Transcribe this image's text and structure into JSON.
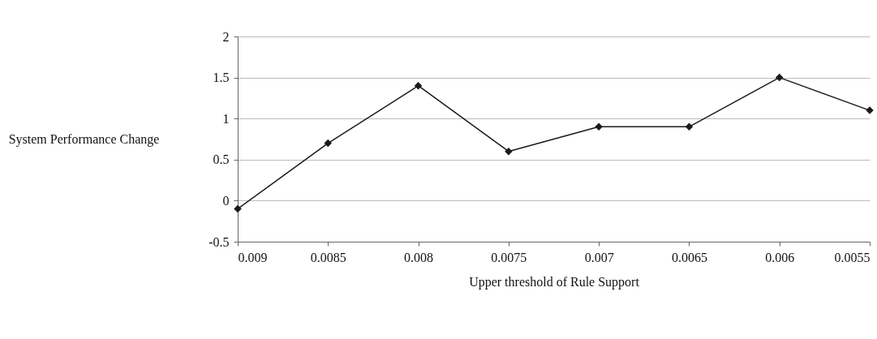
{
  "chart_data": {
    "type": "line",
    "xlabel": "Upper threshold of Rule Support",
    "ylabel": "System Performance Change",
    "x": [
      0.009,
      0.0085,
      0.008,
      0.0075,
      0.007,
      0.0065,
      0.006,
      0.0055
    ],
    "series": [
      {
        "color": "#1a1a1a",
        "values": [
          -0.1,
          0.7,
          1.4,
          0.6,
          0.9,
          0.9,
          1.5,
          1.1
        ]
      }
    ],
    "xlim": [
      0.009,
      0.0055
    ],
    "xticks": [
      0.009,
      0.0085,
      0.008,
      0.0075,
      0.007,
      0.0065,
      0.006,
      0.0055
    ],
    "ylim": [
      -0.5,
      2
    ],
    "yticks": [
      -0.5,
      0,
      0.5,
      1,
      1.5,
      2
    ],
    "grid": "y",
    "legend": false,
    "marker": "diamond",
    "line_style": "solid"
  }
}
